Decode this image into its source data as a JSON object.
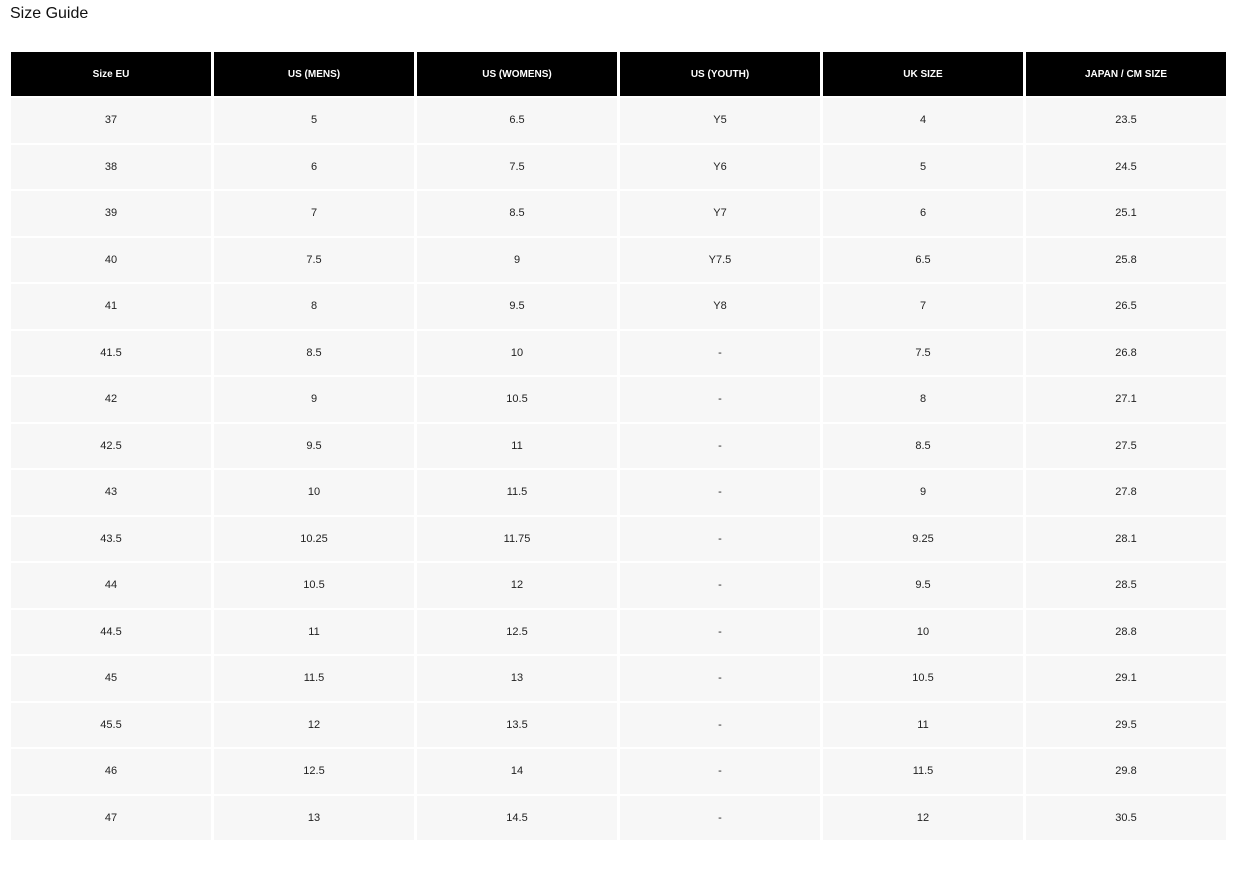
{
  "title": "Size Guide",
  "headers": [
    "Size EU",
    "US (MENS)",
    "US (WOMENS)",
    "US (YOUTH)",
    "UK SIZE",
    "JAPAN / CM SIZE"
  ],
  "rows": [
    [
      "37",
      "5",
      "6.5",
      "Y5",
      "4",
      "23.5"
    ],
    [
      "38",
      "6",
      "7.5",
      "Y6",
      "5",
      "24.5"
    ],
    [
      "39",
      "7",
      "8.5",
      "Y7",
      "6",
      "25.1"
    ],
    [
      "40",
      "7.5",
      "9",
      "Y7.5",
      "6.5",
      "25.8"
    ],
    [
      "41",
      "8",
      "9.5",
      "Y8",
      "7",
      "26.5"
    ],
    [
      "41.5",
      "8.5",
      "10",
      "-",
      "7.5",
      "26.8"
    ],
    [
      "42",
      "9",
      "10.5",
      "-",
      "8",
      "27.1"
    ],
    [
      "42.5",
      "9.5",
      "11",
      "-",
      "8.5",
      "27.5"
    ],
    [
      "43",
      "10",
      "11.5",
      "-",
      "9",
      "27.8"
    ],
    [
      "43.5",
      "10.25",
      "11.75",
      "-",
      "9.25",
      "28.1"
    ],
    [
      "44",
      "10.5",
      "12",
      "-",
      "9.5",
      "28.5"
    ],
    [
      "44.5",
      "11",
      "12.5",
      "-",
      "10",
      "28.8"
    ],
    [
      "45",
      "11.5",
      "13",
      "-",
      "10.5",
      "29.1"
    ],
    [
      "45.5",
      "12",
      "13.5",
      "-",
      "11",
      "29.5"
    ],
    [
      "46",
      "12.5",
      "14",
      "-",
      "11.5",
      "29.8"
    ],
    [
      "47",
      "13",
      "14.5",
      "-",
      "12",
      "30.5"
    ]
  ]
}
